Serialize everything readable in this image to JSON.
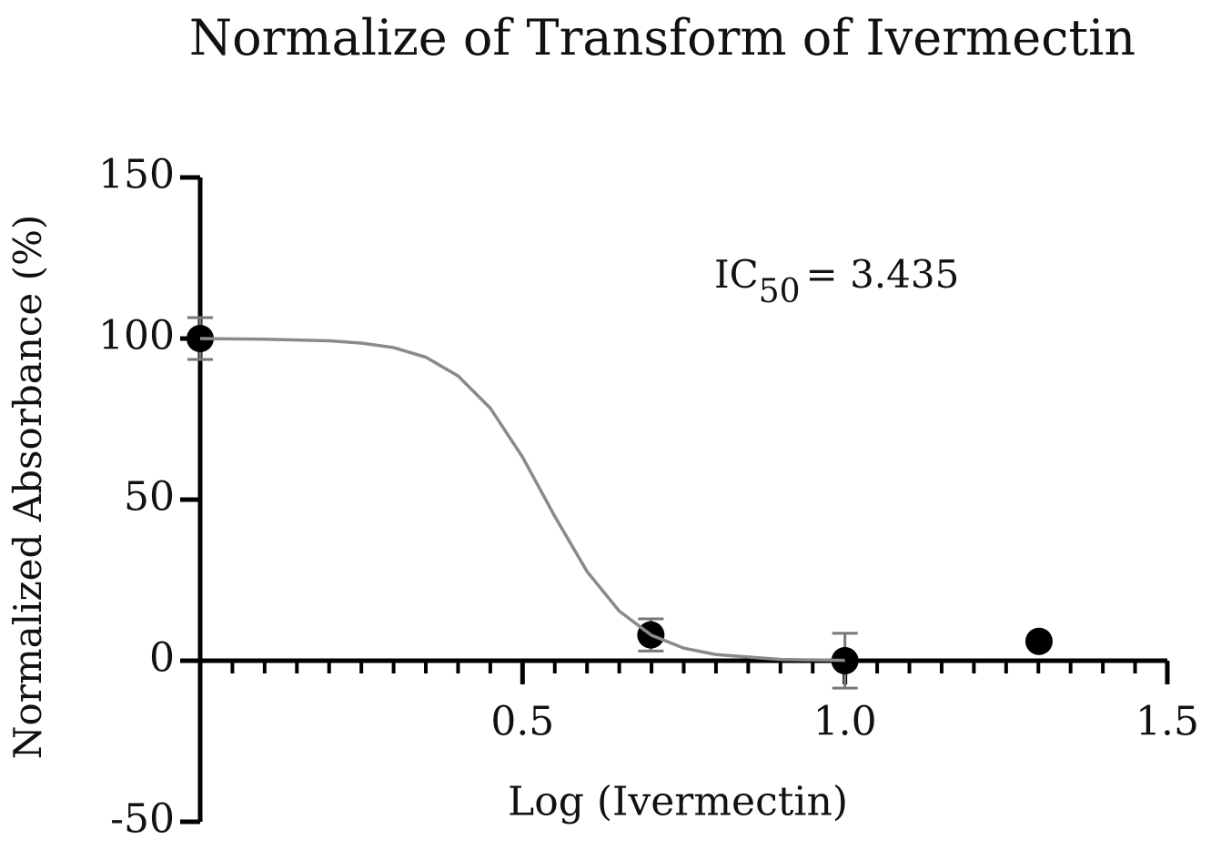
{
  "chart_data": {
    "type": "scatter",
    "title": "Normalize of Transform of Ivermectin",
    "x_label": "Log (Ivermectin)",
    "y_label": "Normalized Absorbance (%)",
    "annotation": {
      "main": "IC",
      "sub": "50",
      "rest": "= 3.435"
    },
    "xlim": [
      0,
      1.5
    ],
    "ylim": [
      -50,
      150
    ],
    "xticks": [
      0.5,
      {
        "value": 1,
        "label": "1.0"
      },
      1.5
    ],
    "xminor_ticks": [
      0.05,
      0.1,
      0.15,
      0.2,
      0.25,
      0.3,
      0.35,
      0.4,
      0.45,
      0.55,
      0.6,
      0.65,
      0.7,
      0.75,
      0.8,
      0.85,
      0.9,
      0.95,
      1.05,
      1.1,
      1.15,
      1.2,
      1.25,
      1.3,
      1.35,
      1.4,
      1.45
    ],
    "yticks": [
      -50,
      0,
      50,
      100,
      150
    ],
    "series": [
      {
        "style": "points",
        "color": "#000000",
        "error_color": "#777777",
        "x": [
          0,
          0.699,
          1,
          1.301
        ],
        "values": [
          100,
          8,
          0,
          6
        ],
        "errors": [
          6.5,
          5,
          8.5,
          0
        ]
      },
      {
        "style": "line",
        "color": "#8a8a8a",
        "x": [
          0,
          0.1,
          0.2,
          0.25,
          0.3,
          0.35,
          0.4,
          0.45,
          0.5,
          0.55,
          0.6,
          0.65,
          0.7,
          0.75,
          0.8,
          0.9,
          1.0
        ],
        "values": [
          100,
          99.8,
          99.3,
          98.6,
          97.2,
          94.2,
          88.4,
          78.4,
          63.2,
          44.8,
          27.7,
          15.4,
          7.9,
          3.9,
          1.9,
          0.4,
          0.1
        ]
      }
    ]
  }
}
